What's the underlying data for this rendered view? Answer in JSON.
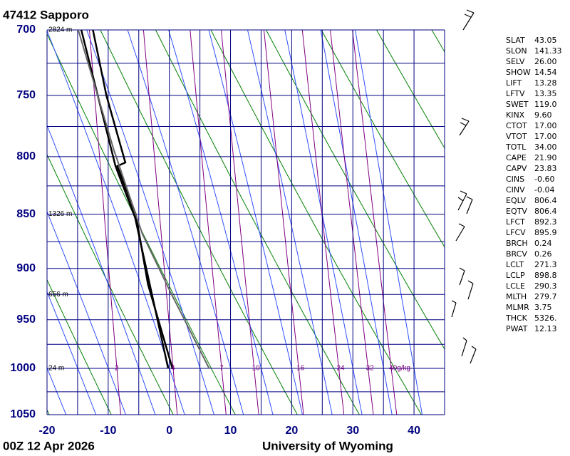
{
  "chart_data": {
    "type": "skewt",
    "title": "47412  Sapporo",
    "footer_left": "00Z 12 Apr 2026",
    "footer_right": "University of Wyoming",
    "xlim": [
      -20,
      45
    ],
    "ylim": [
      1050,
      700
    ],
    "ylog": true,
    "xticks": [
      -20,
      -10,
      0,
      10,
      20,
      30,
      40
    ],
    "xgrid": [
      -20,
      -15,
      -10,
      -5,
      0,
      5,
      10,
      15,
      20,
      25,
      30,
      35,
      40,
      45
    ],
    "yticks": [
      700,
      750,
      800,
      850,
      900,
      950,
      1000,
      1050
    ],
    "ygrid": [
      700,
      725,
      750,
      775,
      800,
      825,
      850,
      875,
      900,
      925,
      950,
      975,
      1000,
      1025,
      1050
    ],
    "height_labels": [
      {
        "value": 700,
        "label": "2824 m"
      },
      {
        "value": 850,
        "label": "1326 m"
      },
      {
        "value": 925,
        "label": "656 m"
      },
      {
        "value": 1000,
        "label": "24 m"
      }
    ],
    "mixing_ratios": [
      2,
      4,
      7,
      10,
      16,
      24,
      32,
      {
        "value": 40,
        "label": "40g/kg"
      }
    ],
    "series": [
      {
        "color": "#000000",
        "pressure": [
          1000,
          915,
          850,
          808,
          805,
          750,
          700
        ],
        "values": [
          0.5,
          -3.5,
          -5.5,
          -8.5,
          -7.2,
          -10.3,
          -12.5
        ]
      },
      {
        "color": "#000000",
        "pressure": [
          1000,
          853,
          808,
          700
        ],
        "values": [
          -0.2,
          -5.6,
          -8.8,
          -14.4
        ]
      },
      {
        "color": "#666666",
        "pressure": [
          1000,
          923,
          868,
          794,
          700
        ],
        "values": [
          6.5,
          0.2,
          -4.4,
          -9.1,
          -14.9
        ]
      }
    ],
    "indices": [
      [
        "SLAT",
        "43.05"
      ],
      [
        "SLON",
        "141.33"
      ],
      [
        "SELV",
        "26.00"
      ],
      [
        "SHOW",
        "14.54"
      ],
      [
        "LIFT",
        "13.28"
      ],
      [
        "LFTV",
        "13.35"
      ],
      [
        "SWET",
        "119.0"
      ],
      [
        "KINX",
        "9.60"
      ],
      [
        "CTOT",
        "17.00"
      ],
      [
        "VTOT",
        "17.00"
      ],
      [
        "TOTL",
        "34.00"
      ],
      [
        "CAPE",
        "21.90"
      ],
      [
        "CAPV",
        "23.83"
      ],
      [
        "CINS",
        "-0.60"
      ],
      [
        "CINV",
        "-0.04"
      ],
      [
        "EQLV",
        "806.4"
      ],
      [
        "EQTV",
        "806.4"
      ],
      [
        "LFCT",
        "892.3"
      ],
      [
        "LFCV",
        "895.9"
      ],
      [
        "BRCH",
        "0.24"
      ],
      [
        "BRCV",
        "0.26"
      ],
      [
        "LCLT",
        "271.3"
      ],
      [
        "LCLP",
        "898.8"
      ],
      [
        "LCLE",
        "290.3"
      ],
      [
        "MLTH",
        "279.7"
      ],
      [
        "MLMR",
        "3.75"
      ],
      [
        "THCK",
        "5326."
      ],
      [
        "PWAT",
        "12.13"
      ]
    ]
  }
}
